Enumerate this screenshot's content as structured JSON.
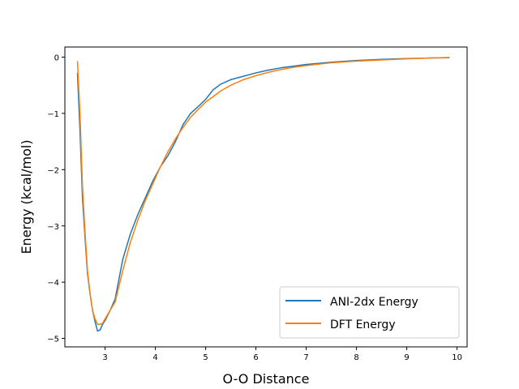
{
  "chart_data": {
    "type": "line",
    "title": "",
    "xlabel": "O-O Distance",
    "ylabel": "Energy (kcal/mol)",
    "xlim": [
      2.2,
      10.2
    ],
    "ylim": [
      -5.15,
      0.18
    ],
    "xticks": [
      3,
      4,
      5,
      6,
      7,
      8,
      9,
      10
    ],
    "yticks": [
      0,
      -1,
      -2,
      -3,
      -4,
      -5
    ],
    "xtick_labels": [
      "3",
      "4",
      "5",
      "6",
      "7",
      "8",
      "9",
      "10"
    ],
    "ytick_labels": [
      "0",
      "−1",
      "−2",
      "−3",
      "−4",
      "−5"
    ],
    "grid": false,
    "legend_position": "lower-right",
    "series": [
      {
        "name": "ANI-2dx Energy",
        "color": "#1f77b4",
        "x": [
          2.45,
          2.5,
          2.55,
          2.6,
          2.65,
          2.7,
          2.75,
          2.8,
          2.85,
          2.9,
          2.95,
          3.0,
          3.1,
          3.2,
          3.35,
          3.5,
          3.65,
          3.8,
          3.95,
          4.1,
          4.25,
          4.4,
          4.55,
          4.7,
          4.85,
          5.0,
          5.15,
          5.3,
          5.5,
          5.75,
          6.0,
          6.25,
          6.5,
          6.75,
          7.0,
          7.5,
          8.0,
          8.5,
          9.0,
          9.5,
          9.85
        ],
        "y": [
          -0.28,
          -1.3,
          -2.5,
          -3.2,
          -3.85,
          -4.2,
          -4.5,
          -4.7,
          -4.87,
          -4.85,
          -4.75,
          -4.68,
          -4.5,
          -4.3,
          -3.6,
          -3.15,
          -2.8,
          -2.5,
          -2.2,
          -1.95,
          -1.75,
          -1.5,
          -1.2,
          -1.0,
          -0.88,
          -0.75,
          -0.58,
          -0.48,
          -0.4,
          -0.34,
          -0.28,
          -0.23,
          -0.19,
          -0.16,
          -0.13,
          -0.09,
          -0.06,
          -0.04,
          -0.025,
          -0.015,
          -0.01
        ]
      },
      {
        "name": "DFT Energy",
        "color": "#ff7f0e",
        "x": [
          2.45,
          2.5,
          2.55,
          2.6,
          2.65,
          2.7,
          2.75,
          2.8,
          2.85,
          2.9,
          2.95,
          3.0,
          3.1,
          3.2,
          3.35,
          3.5,
          3.65,
          3.8,
          3.95,
          4.1,
          4.25,
          4.4,
          4.55,
          4.7,
          4.85,
          5.0,
          5.15,
          5.3,
          5.5,
          5.75,
          6.0,
          6.25,
          6.5,
          6.75,
          7.0,
          7.5,
          8.0,
          8.5,
          9.0,
          9.5,
          9.85
        ],
        "y": [
          -0.07,
          -1.0,
          -2.3,
          -3.1,
          -3.8,
          -4.2,
          -4.5,
          -4.65,
          -4.75,
          -4.75,
          -4.73,
          -4.65,
          -4.5,
          -4.35,
          -3.8,
          -3.3,
          -2.9,
          -2.55,
          -2.25,
          -1.95,
          -1.68,
          -1.45,
          -1.25,
          -1.07,
          -0.93,
          -0.8,
          -0.7,
          -0.6,
          -0.5,
          -0.4,
          -0.33,
          -0.27,
          -0.22,
          -0.18,
          -0.15,
          -0.1,
          -0.07,
          -0.05,
          -0.03,
          -0.015,
          -0.005
        ]
      }
    ]
  }
}
